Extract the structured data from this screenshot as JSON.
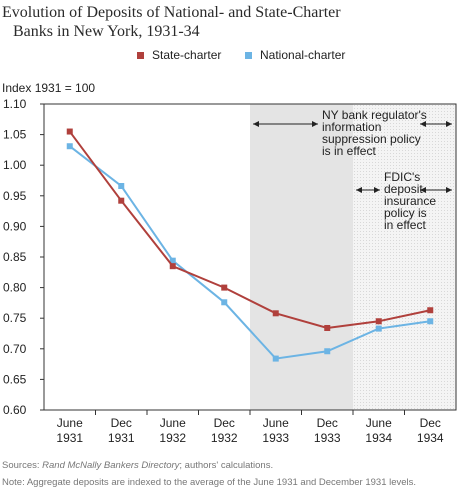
{
  "title_line1": "Evolution of Deposits of National- and State-Charter",
  "title_line2": "Banks in New York, 1931-34",
  "chart_data": {
    "type": "line",
    "title": "Evolution of Deposits of National- and State-Charter Banks in New York, 1931-34",
    "ylabel": "Index 1931 = 100",
    "ylim": [
      0.6,
      1.1
    ],
    "yticks": [
      1.1,
      1.05,
      1.0,
      0.95,
      0.9,
      0.85,
      0.8,
      0.75,
      0.7,
      0.65,
      0.6
    ],
    "categories": [
      [
        "June",
        "1931"
      ],
      [
        "Dec",
        "1931"
      ],
      [
        "June",
        "1932"
      ],
      [
        "Dec",
        "1932"
      ],
      [
        "June",
        "1933"
      ],
      [
        "Dec",
        "1933"
      ],
      [
        "June",
        "1934"
      ],
      [
        "Dec",
        "1934"
      ]
    ],
    "series": [
      {
        "name": "State-charter",
        "color": "#b0403c",
        "values": [
          1.055,
          0.942,
          0.835,
          0.8,
          0.758,
          0.734,
          0.745,
          0.763
        ]
      },
      {
        "name": "National-charter",
        "color": "#6cb4e4",
        "values": [
          1.031,
          0.966,
          0.844,
          0.776,
          0.684,
          0.696,
          0.733,
          0.745
        ]
      }
    ],
    "shaded_regions": [
      {
        "label": [
          "NY bank regulator's",
          "information",
          "suppression policy",
          "is in effect"
        ],
        "from_index": 3.5,
        "to_index": 7.5,
        "fill": "#e4e4e4",
        "pattern": "solid"
      },
      {
        "label": [
          "FDIC's",
          "deposit",
          "insurance",
          "policy is",
          "in effect"
        ],
        "from_index": 5.5,
        "to_index": 7.5,
        "fill": "#f3f3f3",
        "pattern": "dotted"
      }
    ],
    "legend_position": "top-center",
    "grid": false
  },
  "sources_prefix": "Sources: ",
  "sources_italic": "Rand McNally Bankers Directory",
  "sources_suffix": "; authors' calculations.",
  "note": "Note: Aggregate deposits are indexed to the average of the June 1931 and December 1931 levels."
}
